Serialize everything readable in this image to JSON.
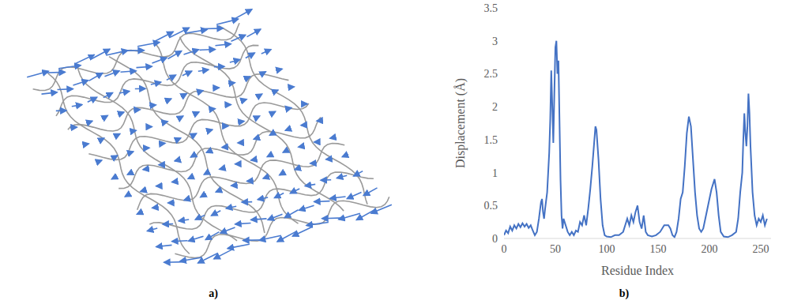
{
  "panel_labels": [
    "a)",
    "b)"
  ],
  "chart_data": {
    "type": "line",
    "x_label": "Residue Index",
    "y_label": "Displacement (Å)",
    "x": [
      0,
      2,
      4,
      6,
      8,
      10,
      12,
      14,
      16,
      18,
      20,
      22,
      24,
      26,
      28,
      30,
      32,
      34,
      36,
      37,
      38,
      39,
      40,
      42,
      44,
      45,
      46,
      47,
      48,
      49,
      50,
      51,
      52,
      53,
      54,
      55,
      56,
      57,
      58,
      60,
      62,
      64,
      66,
      68,
      70,
      72,
      74,
      76,
      78,
      80,
      82,
      84,
      86,
      88,
      89,
      90,
      92,
      94,
      96,
      98,
      100,
      104,
      108,
      112,
      116,
      118,
      120,
      122,
      124,
      126,
      128,
      130,
      132,
      134,
      136,
      138,
      140,
      144,
      148,
      152,
      156,
      160,
      162,
      164,
      166,
      168,
      170,
      172,
      174,
      176,
      178,
      180,
      182,
      184,
      186,
      188,
      190,
      192,
      194,
      196,
      198,
      200,
      202,
      204,
      205,
      207,
      209,
      211,
      214,
      218,
      222,
      226,
      228,
      230,
      232,
      233,
      234,
      235,
      236,
      237,
      238,
      239,
      240,
      242,
      244,
      246,
      248,
      250,
      252,
      254,
      256
    ],
    "values": [
      0.05,
      0.12,
      0.08,
      0.18,
      0.12,
      0.2,
      0.15,
      0.22,
      0.17,
      0.23,
      0.18,
      0.22,
      0.16,
      0.2,
      0.12,
      0.05,
      0.1,
      0.3,
      0.55,
      0.6,
      0.4,
      0.3,
      0.45,
      0.7,
      1.3,
      1.8,
      2.55,
      2,
      1.45,
      2.2,
      2.9,
      3,
      2.5,
      2.7,
      1.8,
      0.9,
      0.35,
      0.15,
      0.3,
      0.2,
      0.1,
      0.05,
      0.1,
      0.05,
      0.12,
      0.1,
      0.25,
      0.2,
      0.35,
      0.2,
      0.45,
      0.75,
      1.1,
      1.5,
      1.7,
      1.65,
      1.2,
      0.6,
      0.2,
      0.05,
      0.03,
      0.02,
      0.05,
      0.05,
      0.1,
      0.2,
      0.3,
      0.2,
      0.35,
      0.25,
      0.4,
      0.5,
      0.25,
      0.15,
      0.35,
      0.1,
      0.05,
      0.03,
      0.05,
      0.1,
      0.2,
      0.2,
      0.15,
      0.05,
      0.02,
      0.1,
      0.3,
      0.6,
      0.7,
      1.1,
      1.6,
      1.85,
      1.7,
      1.2,
      0.7,
      0.35,
      0.15,
      0.1,
      0.15,
      0.3,
      0.45,
      0.6,
      0.75,
      0.85,
      0.9,
      0.7,
      0.35,
      0.1,
      0.03,
      0.02,
      0.05,
      0.1,
      0.3,
      0.7,
      1,
      1.5,
      1.9,
      1.6,
      1.4,
      1.7,
      2.2,
      1.9,
      1.4,
      0.7,
      0.35,
      0.2,
      0.3,
      0.25,
      0.35,
      0.2,
      0.3
    ],
    "color": "#4472c4",
    "xlim": [
      0,
      260
    ],
    "xticks": [
      0,
      50,
      100,
      150,
      200,
      250
    ],
    "ylim": [
      0,
      3.5
    ],
    "yticks": [
      0,
      0.5,
      1,
      1.5,
      2,
      2.5,
      3,
      3.5
    ],
    "grid": false
  }
}
